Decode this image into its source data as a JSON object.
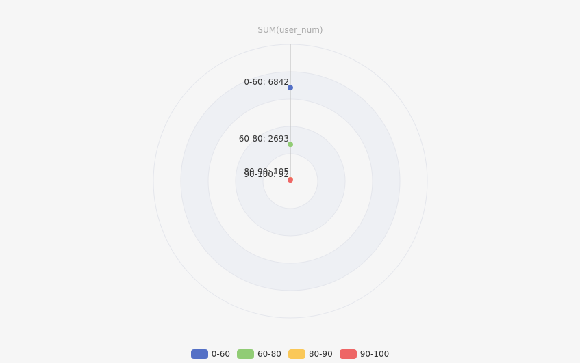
{
  "chart_data": {
    "type": "scatter",
    "coordinate": "polar",
    "radius_axis_title": "SUM(user_num)",
    "radius_range": [
      0,
      10000
    ],
    "split_area": true,
    "legend_position": "bottom-center",
    "series": [
      {
        "name": "0-60",
        "value": 6842,
        "label": "0-60: 6842",
        "color": "#5470c6"
      },
      {
        "name": "60-80",
        "value": 2693,
        "label": "60-80: 2693",
        "color": "#91cc75"
      },
      {
        "name": "80-90",
        "value": 105,
        "label": "80-90: 105",
        "color": "#fac858"
      },
      {
        "name": "90-100",
        "value": 92,
        "label": "90-100: 92",
        "color": "#ee6666"
      }
    ]
  }
}
